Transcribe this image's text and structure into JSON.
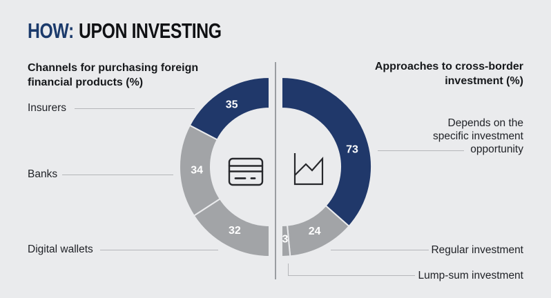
{
  "title": {
    "prefix": "HOW:",
    "rest": "UPON INVESTING"
  },
  "colors": {
    "accent_navy": "#20386a",
    "neutral_gray": "#a2a4a7",
    "background": "#eaebed",
    "title_accent": "#1b3a6b",
    "title_text": "#101114",
    "text": "#202227",
    "connector_line": "#b4b6b9",
    "value_label": "#ffffff"
  },
  "chart_data": [
    {
      "type": "donut",
      "shape": "left-half",
      "title": "Channels for purchasing foreign financial products (%)",
      "labels": [
        "Insurers",
        "Banks",
        "Digital wallets"
      ],
      "values": [
        35,
        34,
        32
      ],
      "colors": [
        "#20386a",
        "#a2a4a7",
        "#a2a4a7"
      ],
      "value_label_color": "#ffffff",
      "center_icon": "credit-card-icon",
      "legend_position": "left"
    },
    {
      "type": "donut",
      "shape": "right-half",
      "title": "Approaches to cross-border investment (%)",
      "labels": [
        "Depends on the specific investment opportunity",
        "Regular investment",
        "Lump-sum investment"
      ],
      "values": [
        73,
        24,
        3
      ],
      "colors": [
        "#20386a",
        "#a2a4a7",
        "#a2a4a7"
      ],
      "value_label_color": "#ffffff",
      "center_icon": "line-chart-icon",
      "legend_position": "right"
    }
  ]
}
